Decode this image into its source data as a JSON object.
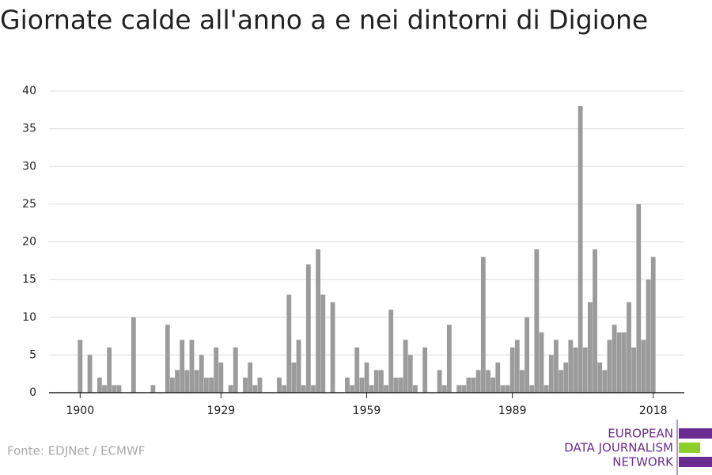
{
  "chart_data": {
    "type": "bar",
    "title": "Giornate calde all'anno a e nei dintorni di Digione",
    "source": "Fonte: EDJNet / ECMWF",
    "logo": [
      "EUROPEAN",
      "DATA JOURNALISM",
      "NETWORK"
    ],
    "color": "#9b9b9b",
    "x": [
      1900,
      1901,
      1902,
      1903,
      1904,
      1905,
      1906,
      1907,
      1908,
      1909,
      1910,
      1911,
      1912,
      1913,
      1914,
      1915,
      1916,
      1917,
      1918,
      1919,
      1920,
      1921,
      1922,
      1923,
      1924,
      1925,
      1926,
      1927,
      1928,
      1929,
      1930,
      1931,
      1932,
      1933,
      1934,
      1935,
      1936,
      1937,
      1938,
      1939,
      1940,
      1941,
      1942,
      1943,
      1944,
      1945,
      1946,
      1947,
      1948,
      1949,
      1950,
      1951,
      1952,
      1953,
      1954,
      1955,
      1956,
      1957,
      1958,
      1959,
      1960,
      1961,
      1962,
      1963,
      1964,
      1965,
      1966,
      1967,
      1968,
      1969,
      1970,
      1971,
      1972,
      1973,
      1974,
      1975,
      1976,
      1977,
      1978,
      1979,
      1980,
      1981,
      1982,
      1983,
      1984,
      1985,
      1986,
      1987,
      1988,
      1989,
      1990,
      1991,
      1992,
      1993,
      1994,
      1995,
      1996,
      1997,
      1998,
      1999,
      2000,
      2001,
      2002,
      2003,
      2004,
      2005,
      2006,
      2007,
      2008,
      2009,
      2010,
      2011,
      2012,
      2013,
      2014,
      2015,
      2016,
      2017,
      2018
    ],
    "values": [
      7,
      0,
      5,
      0,
      2,
      1,
      6,
      1,
      1,
      0,
      0,
      10,
      0,
      0,
      0,
      1,
      0,
      0,
      9,
      2,
      3,
      7,
      3,
      7,
      3,
      5,
      2,
      2,
      6,
      4,
      0,
      1,
      6,
      0,
      2,
      4,
      1,
      2,
      0,
      0,
      0,
      2,
      1,
      13,
      4,
      7,
      1,
      17,
      1,
      19,
      13,
      0,
      12,
      0,
      0,
      2,
      1,
      6,
      2,
      4,
      1,
      3,
      3,
      1,
      11,
      2,
      2,
      7,
      5,
      1,
      0,
      6,
      0,
      0,
      3,
      1,
      9,
      0,
      1,
      1,
      2,
      2,
      3,
      18,
      3,
      2,
      4,
      1,
      1,
      6,
      7,
      3,
      10,
      1,
      19,
      8,
      1,
      5,
      7,
      3,
      4,
      7,
      6,
      38,
      6,
      12,
      19,
      4,
      3,
      7,
      9,
      8,
      8,
      12,
      6,
      25,
      7,
      15,
      18
    ],
    "xlim": [
      1893.6,
      2024.4
    ],
    "xticks": [
      1900,
      1929,
      1959,
      1989,
      2018
    ],
    "ylim": [
      0,
      40
    ],
    "yticks": [
      0,
      5,
      10,
      15,
      20,
      25,
      30,
      35,
      40
    ],
    "grid": true
  }
}
